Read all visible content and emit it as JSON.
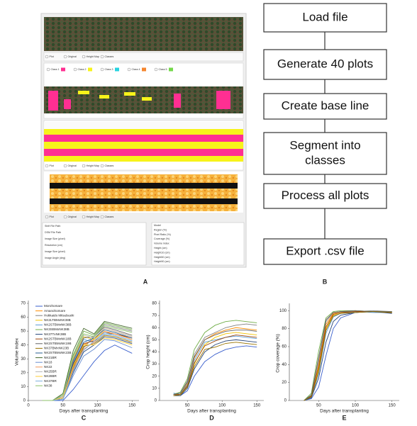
{
  "figure": {
    "panel_labels": [
      "A",
      "B"
    ],
    "panel_a": {
      "view_options": [
        "Plot",
        "Original",
        "Height Map",
        "Classes"
      ],
      "classes": [
        "Class 1",
        "Class 2",
        "Class 3",
        "Class 4",
        "Class 5"
      ],
      "info_left": [
        "Shift File Path",
        "DSM File Path",
        "Image Size (pixel)",
        "Resolution (cm)",
        "Image Size (pixel)",
        "Image Angle (deg)"
      ],
      "info_right": [
        "Model",
        "Region (%)",
        "Pixel Ratio (%)",
        "Coverage (%)",
        "Volume index",
        "Height (cm)",
        "Height10 (cm)",
        "Height50 (cm)",
        "Height90 (cm)"
      ]
    },
    "flowchart": {
      "steps": [
        {
          "lines": [
            "Load file"
          ]
        },
        {
          "lines": [
            "Generate 40 plots"
          ]
        },
        {
          "lines": [
            "Create base line"
          ]
        },
        {
          "lines": [
            "Segment into",
            "classes"
          ]
        },
        {
          "lines": [
            "Process all plots"
          ]
        },
        {
          "lines": [
            "Export .csv file"
          ]
        }
      ]
    }
  },
  "chart_data": [
    {
      "type": "line",
      "label": "C",
      "x_label": "Days after transplanting",
      "y_label": "Volume index",
      "xlim": [
        0,
        160
      ],
      "ylim": [
        0,
        70
      ],
      "xticks": [
        0,
        50,
        100,
        150
      ],
      "yticks": [
        0,
        10,
        20,
        30,
        40,
        50,
        60,
        70
      ],
      "x": [
        20,
        35,
        50,
        65,
        80,
        95,
        110,
        125,
        150
      ],
      "series": [
        {
          "name": "Morohomare",
          "color": "#3a5fcd",
          "values": [
            0,
            0,
            0,
            8,
            18,
            28,
            36,
            40,
            34
          ]
        },
        {
          "name": "Amanohomare",
          "color": "#ff8c00",
          "values": [
            0,
            0,
            2,
            25,
            40,
            44,
            52,
            50,
            46
          ]
        },
        {
          "name": "Hokkaido Mitsubushi",
          "color": "#808080",
          "values": [
            0,
            0,
            1,
            22,
            38,
            46,
            55,
            53,
            50
          ]
        },
        {
          "name": "NK2LTBMxNK38B",
          "color": "#f2c200",
          "values": [
            0,
            0,
            3,
            30,
            46,
            44,
            50,
            48,
            44
          ]
        },
        {
          "name": "NK2STBMxNK38B",
          "color": "#5b9bd5",
          "values": [
            0,
            0,
            2,
            28,
            44,
            42,
            48,
            47,
            43
          ]
        },
        {
          "name": "NK3SBMxNK38B",
          "color": "#70ad47",
          "values": [
            0,
            0,
            4,
            33,
            50,
            47,
            56,
            54,
            51
          ]
        },
        {
          "name": "NK37TxNK38B",
          "color": "#264478",
          "values": [
            0,
            0,
            1,
            20,
            35,
            40,
            46,
            45,
            41
          ]
        },
        {
          "name": "NK2STBMxNK18B",
          "color": "#9e480e",
          "values": [
            0,
            0,
            2,
            26,
            41,
            43,
            49,
            48,
            45
          ]
        },
        {
          "name": "NK2STBMxNK19B",
          "color": "#636363",
          "values": [
            0,
            0,
            3,
            29,
            45,
            46,
            53,
            51,
            47
          ]
        },
        {
          "name": "NK37BMxNK23B",
          "color": "#997300",
          "values": [
            0,
            0,
            1,
            24,
            39,
            41,
            47,
            46,
            42
          ]
        },
        {
          "name": "NK2STBMxNK23B",
          "color": "#255e91",
          "values": [
            0,
            0,
            2,
            27,
            42,
            45,
            51,
            49,
            45
          ]
        },
        {
          "name": "NK21BR",
          "color": "#43682b",
          "values": [
            0,
            0,
            5,
            36,
            52,
            48,
            57,
            55,
            52
          ]
        },
        {
          "name": "NK18",
          "color": "#698ed0",
          "values": [
            0,
            0,
            1,
            18,
            32,
            37,
            44,
            43,
            38
          ]
        },
        {
          "name": "NK22",
          "color": "#f1975a",
          "values": [
            0,
            0,
            2,
            23,
            37,
            42,
            50,
            48,
            44
          ]
        },
        {
          "name": "NK25BR",
          "color": "#b7b7b7",
          "values": [
            0,
            0,
            3,
            31,
            47,
            45,
            52,
            50,
            46
          ]
        },
        {
          "name": "NK28BR",
          "color": "#ffcd33",
          "values": [
            0,
            0,
            2,
            25,
            40,
            40,
            45,
            44,
            40
          ]
        },
        {
          "name": "NK37BR",
          "color": "#7cafdd",
          "values": [
            0,
            0,
            1,
            21,
            36,
            43,
            49,
            47,
            43
          ]
        },
        {
          "name": "NK38",
          "color": "#8cc168",
          "values": [
            0,
            0,
            4,
            32,
            48,
            46,
            54,
            52,
            49
          ]
        }
      ]
    },
    {
      "type": "line",
      "label": "D",
      "x_label": "Days after transplanting",
      "y_label": "Crop height (cm)",
      "xlim": [
        10,
        160
      ],
      "ylim": [
        0,
        80
      ],
      "xticks": [
        50,
        100,
        150
      ],
      "yticks": [
        0,
        10,
        20,
        30,
        40,
        50,
        60,
        70,
        80
      ],
      "x": [
        30,
        40,
        50,
        60,
        75,
        90,
        105,
        120,
        135,
        150
      ],
      "series": [
        {
          "color": "#3a5fcd",
          "values": [
            5,
            4,
            8,
            20,
            32,
            38,
            42,
            44,
            45,
            44
          ]
        },
        {
          "color": "#ff8c00",
          "values": [
            4,
            5,
            14,
            35,
            50,
            55,
            58,
            60,
            59,
            58
          ]
        },
        {
          "color": "#808080",
          "values": [
            5,
            6,
            15,
            38,
            52,
            56,
            60,
            62,
            63,
            62
          ]
        },
        {
          "color": "#f2c200",
          "values": [
            4,
            4,
            12,
            30,
            46,
            52,
            55,
            56,
            55,
            54
          ]
        },
        {
          "color": "#5b9bd5",
          "values": [
            6,
            5,
            13,
            33,
            48,
            50,
            52,
            53,
            52,
            51
          ]
        },
        {
          "color": "#70ad47",
          "values": [
            5,
            7,
            18,
            42,
            56,
            62,
            65,
            66,
            65,
            64
          ]
        },
        {
          "color": "#264478",
          "values": [
            4,
            4,
            10,
            26,
            40,
            46,
            49,
            50,
            49,
            48
          ]
        },
        {
          "color": "#9e480e",
          "values": [
            5,
            5,
            12,
            31,
            45,
            49,
            52,
            54,
            53,
            52
          ]
        },
        {
          "color": "#636363",
          "values": [
            5,
            6,
            16,
            36,
            50,
            54,
            57,
            58,
            58,
            57
          ]
        },
        {
          "color": "#997300",
          "values": [
            4,
            5,
            11,
            28,
            42,
            44,
            47,
            48,
            47,
            46
          ]
        }
      ]
    },
    {
      "type": "line",
      "label": "E",
      "x_label": "Days after transplanting",
      "y_label": "Crop coverage (%)",
      "xlim": [
        10,
        160
      ],
      "ylim": [
        0,
        105
      ],
      "xticks": [
        50,
        100,
        150
      ],
      "yticks": [
        0,
        20,
        40,
        60,
        80,
        100
      ],
      "x": [
        30,
        40,
        50,
        60,
        70,
        80,
        100,
        125,
        150
      ],
      "series": [
        {
          "color": "#3a5fcd",
          "values": [
            0,
            2,
            15,
            50,
            80,
            92,
            98,
            99,
            98
          ]
        },
        {
          "color": "#ff8c00",
          "values": [
            0,
            5,
            40,
            85,
            97,
            99,
            100,
            99,
            98
          ]
        },
        {
          "color": "#808080",
          "values": [
            0,
            6,
            45,
            88,
            98,
            99,
            99,
            100,
            99
          ]
        },
        {
          "color": "#f2c200",
          "values": [
            0,
            4,
            35,
            80,
            95,
            98,
            99,
            99,
            98
          ]
        },
        {
          "color": "#5b9bd5",
          "values": [
            0,
            3,
            30,
            75,
            93,
            97,
            99,
            98,
            98
          ]
        },
        {
          "color": "#70ad47",
          "values": [
            0,
            8,
            55,
            92,
            99,
            100,
            100,
            99,
            99
          ]
        },
        {
          "color": "#264478",
          "values": [
            0,
            3,
            25,
            65,
            88,
            95,
            98,
            99,
            97
          ]
        },
        {
          "color": "#9e480e",
          "values": [
            0,
            5,
            38,
            82,
            96,
            98,
            99,
            99,
            98
          ]
        },
        {
          "color": "#636363",
          "values": [
            0,
            6,
            48,
            90,
            98,
            99,
            100,
            99,
            99
          ]
        },
        {
          "color": "#997300",
          "values": [
            0,
            4,
            32,
            78,
            94,
            97,
            98,
            99,
            98
          ]
        }
      ]
    }
  ]
}
